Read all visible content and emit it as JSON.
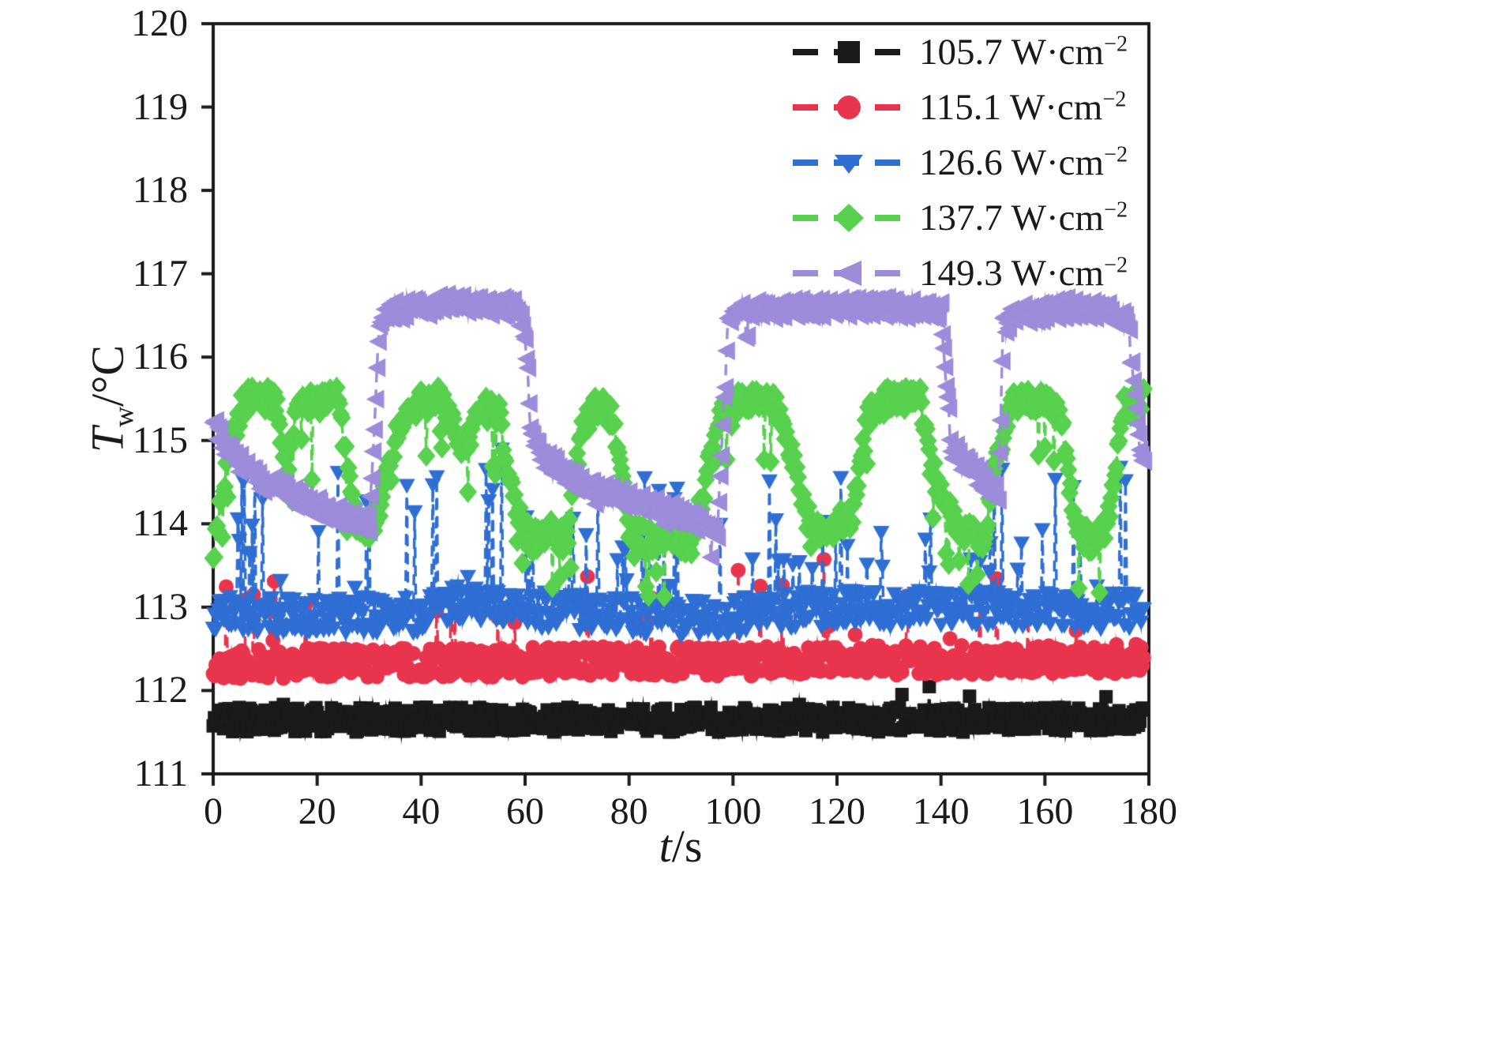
{
  "figure": {
    "background": "#ffffff",
    "axis_color": "#1a1a1a"
  },
  "chart_data": {
    "type": "scatter",
    "title": "",
    "xlabel": "t/s",
    "xlabel_parts": {
      "main": "t",
      "rest": "/s"
    },
    "ylabel": "Tw/°C",
    "ylabel_parts": {
      "main": "T",
      "sub": "w",
      "rest": "/°C"
    },
    "xlim": [
      0,
      180
    ],
    "ylim": [
      111,
      120
    ],
    "xticks": [
      0,
      20,
      40,
      60,
      80,
      100,
      120,
      140,
      160,
      180
    ],
    "yticks": [
      111,
      112,
      113,
      114,
      115,
      116,
      117,
      118,
      119,
      120
    ],
    "grid": false,
    "legend_position": "top-right",
    "series": [
      {
        "name": "105.7 W·cm",
        "exp": "−2",
        "color": "#1a1a1a",
        "marker": "square",
        "size": 17,
        "step": 0.25,
        "noise": 0.15,
        "spike": {
          "prob": 0.02,
          "lo": 0.05,
          "hi": 0.3
        },
        "keyframes": [
          [
            0,
            111.65
          ],
          [
            180,
            111.65
          ]
        ]
      },
      {
        "name": "115.1 W·cm",
        "exp": "−2",
        "color": "#e8354d",
        "marker": "circle",
        "size": 19,
        "step": 0.25,
        "noise": 0.18,
        "spike": {
          "prob": 0.035,
          "lo": 0.2,
          "hi": 1.05
        },
        "keyframes": [
          [
            0,
            112.32
          ],
          [
            180,
            112.38
          ]
        ]
      },
      {
        "name": "126.6 W·cm",
        "exp": "−2",
        "color": "#2f6fd4",
        "marker": "triangle-down",
        "size": 21,
        "step": 0.25,
        "noise": 0.22,
        "spike": {
          "prob": 0.11,
          "lo": 0.25,
          "hi": 1.7
        },
        "keyframes": [
          [
            0,
            112.92
          ],
          [
            40,
            112.9
          ],
          [
            45,
            113.05
          ],
          [
            90,
            112.85
          ],
          [
            120,
            113.0
          ],
          [
            180,
            112.95
          ]
        ]
      },
      {
        "name": "137.7 W·cm",
        "exp": "−2",
        "color": "#57d14e",
        "marker": "diamond",
        "size": 23,
        "step": 0.25,
        "noise": 0.15,
        "spike": {
          "prob": 0.05,
          "lo": -0.9,
          "hi": -0.2
        },
        "keyframes": [
          [
            0,
            113.6
          ],
          [
            3,
            114.9
          ],
          [
            6,
            115.5
          ],
          [
            12,
            115.5
          ],
          [
            14,
            114.5
          ],
          [
            16,
            115.4
          ],
          [
            24,
            115.5
          ],
          [
            27,
            114.1
          ],
          [
            31,
            113.9
          ],
          [
            34,
            114.8
          ],
          [
            37,
            115.4
          ],
          [
            44,
            115.5
          ],
          [
            48,
            114.9
          ],
          [
            52,
            115.4
          ],
          [
            55,
            115.3
          ],
          [
            58,
            114.2
          ],
          [
            61,
            113.8
          ],
          [
            65,
            113.9
          ],
          [
            68,
            113.8
          ],
          [
            71,
            115.2
          ],
          [
            74,
            115.4
          ],
          [
            77,
            115.3
          ],
          [
            80,
            113.9
          ],
          [
            84,
            113.8
          ],
          [
            88,
            113.9
          ],
          [
            92,
            113.7
          ],
          [
            95,
            114.6
          ],
          [
            98,
            115.4
          ],
          [
            104,
            115.5
          ],
          [
            108,
            115.5
          ],
          [
            111,
            114.9
          ],
          [
            114,
            114.1
          ],
          [
            117,
            113.9
          ],
          [
            120,
            114.0
          ],
          [
            123,
            114.1
          ],
          [
            126,
            115.3
          ],
          [
            130,
            115.5
          ],
          [
            136,
            115.5
          ],
          [
            139,
            114.5
          ],
          [
            142,
            114.1
          ],
          [
            145,
            113.9
          ],
          [
            148,
            113.8
          ],
          [
            151,
            114.8
          ],
          [
            154,
            115.5
          ],
          [
            160,
            115.5
          ],
          [
            163,
            115.3
          ],
          [
            166,
            113.9
          ],
          [
            169,
            113.8
          ],
          [
            172,
            114.0
          ],
          [
            175,
            115.4
          ],
          [
            180,
            115.5
          ]
        ]
      },
      {
        "name": "149.3 W·cm",
        "exp": "−2",
        "color": "#9c8cda",
        "marker": "triangle-left",
        "size": 24,
        "step": 0.25,
        "noise": 0.12,
        "spike": {
          "prob": 0.03,
          "lo": -0.35,
          "hi": 0.1
        },
        "keyframes": [
          [
            0,
            115.2
          ],
          [
            2,
            114.9
          ],
          [
            8,
            114.55
          ],
          [
            15,
            114.35
          ],
          [
            22,
            114.15
          ],
          [
            30,
            114.0
          ],
          [
            32,
            116.45
          ],
          [
            34,
            116.55
          ],
          [
            45,
            116.65
          ],
          [
            58,
            116.6
          ],
          [
            60,
            116.3
          ],
          [
            61,
            115.2
          ],
          [
            63,
            114.8
          ],
          [
            70,
            114.5
          ],
          [
            80,
            114.3
          ],
          [
            90,
            114.1
          ],
          [
            97,
            113.95
          ],
          [
            99,
            116.35
          ],
          [
            101,
            116.55
          ],
          [
            115,
            116.6
          ],
          [
            130,
            116.6
          ],
          [
            140,
            116.55
          ],
          [
            142,
            114.9
          ],
          [
            145,
            114.7
          ],
          [
            151,
            114.35
          ],
          [
            152,
            116.35
          ],
          [
            154,
            116.5
          ],
          [
            165,
            116.6
          ],
          [
            172,
            116.55
          ],
          [
            176,
            116.4
          ],
          [
            178,
            115.0
          ],
          [
            180,
            114.55
          ]
        ]
      }
    ]
  }
}
